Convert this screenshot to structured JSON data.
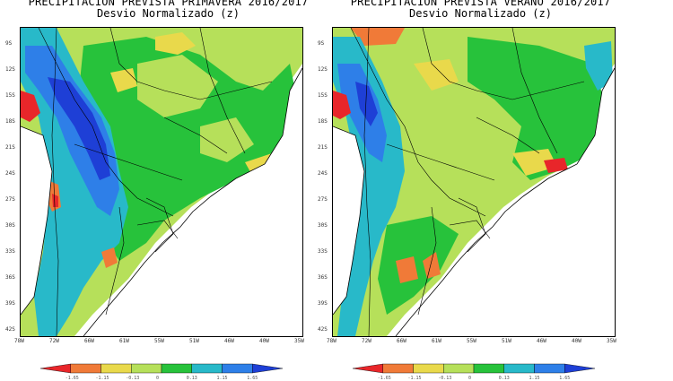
{
  "palette": {
    "red": "#e8262a",
    "orange": "#f07a38",
    "yellow": "#e9d94b",
    "lightgreen": "#b6e05a",
    "green": "#27c23b",
    "cyan": "#28b9c9",
    "blue": "#2e7fe8",
    "darkblue": "#1e3fd6",
    "sea": "#ffffff"
  },
  "colorbar": {
    "labels": [
      "-1.65",
      "-1.15",
      "-0.13",
      "0",
      "0.13",
      "1.15",
      "1.65"
    ],
    "colors": [
      "#e8262a",
      "#f07a38",
      "#e9d94b",
      "#b6e05a",
      "#27c23b",
      "#28b9c9",
      "#2e7fe8",
      "#1e3fd6"
    ]
  },
  "axes": {
    "lat_labels": [
      "9S",
      "12S",
      "15S",
      "18S",
      "21S",
      "24S",
      "27S",
      "30S",
      "33S",
      "36S",
      "39S",
      "42S"
    ],
    "lon_labels": [
      "78W",
      "72W",
      "66W",
      "61W",
      "55W",
      "51W",
      "46W",
      "40W",
      "35W"
    ]
  },
  "panels": [
    {
      "id": "primavera",
      "title": "PRECIPITACION PREVISTA PRIMAVERA 2016/2017",
      "subtitle": "Desvio Normalizado (z)",
      "dominant": "lightgreen"
    },
    {
      "id": "verano",
      "title": "PRECIPITACION PREVISTA VERANO 2016/2017",
      "subtitle": "Desvio Normalizado (z)",
      "dominant": "lightgreen"
    }
  ]
}
